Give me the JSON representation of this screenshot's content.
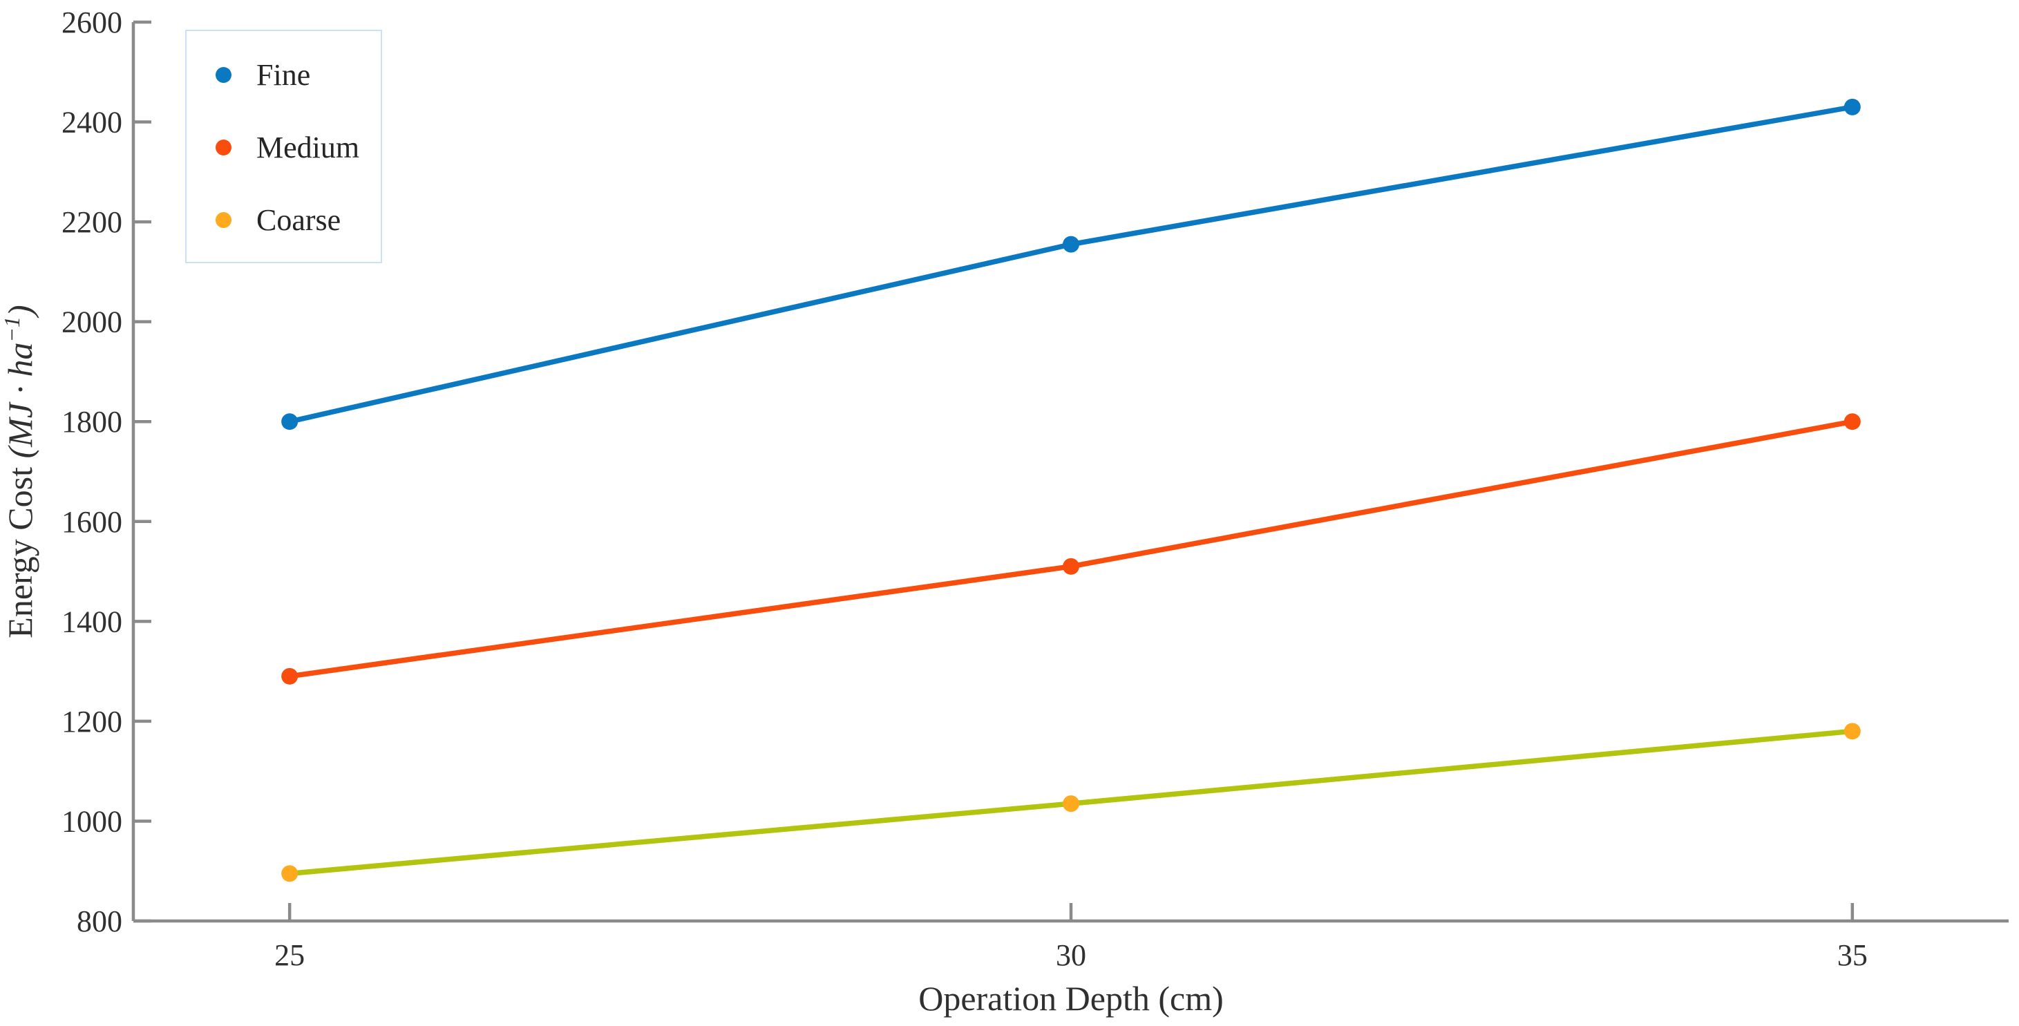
{
  "chart_data": {
    "type": "line",
    "title": "",
    "xlabel": "Operation Depth (cm)",
    "ylabel": "Energy Cost (MJ · ha⁻¹)",
    "ylabel_parts": {
      "main": "Energy Cost ",
      "unit_pre": "(MJ · ha",
      "unit_sup": "−1",
      "unit_post": ")"
    },
    "x": [
      25,
      30,
      35
    ],
    "xticks": [
      "25",
      "30",
      "35"
    ],
    "yticks": [
      800,
      1000,
      1200,
      1400,
      1600,
      1800,
      2000,
      2200,
      2400,
      2600
    ],
    "xlim": [
      24,
      36
    ],
    "ylim": [
      800,
      2600
    ],
    "grid": false,
    "legend_position": "top-left",
    "series": [
      {
        "name": "Fine",
        "values": [
          1800,
          2155,
          2430
        ],
        "line_color": "#0b78c2",
        "marker_color": "#0b78c2"
      },
      {
        "name": "Medium",
        "values": [
          1290,
          1510,
          1800
        ],
        "line_color": "#f94d0d",
        "marker_color": "#f94d0d"
      },
      {
        "name": "Coarse",
        "values": [
          895,
          1035,
          1180
        ],
        "line_color": "#b2c40e",
        "marker_color": "#ffa91f"
      }
    ],
    "axis_color": "#8a8a8a",
    "text_color": "#303030",
    "legend_border_color": "#c9e0f5"
  }
}
